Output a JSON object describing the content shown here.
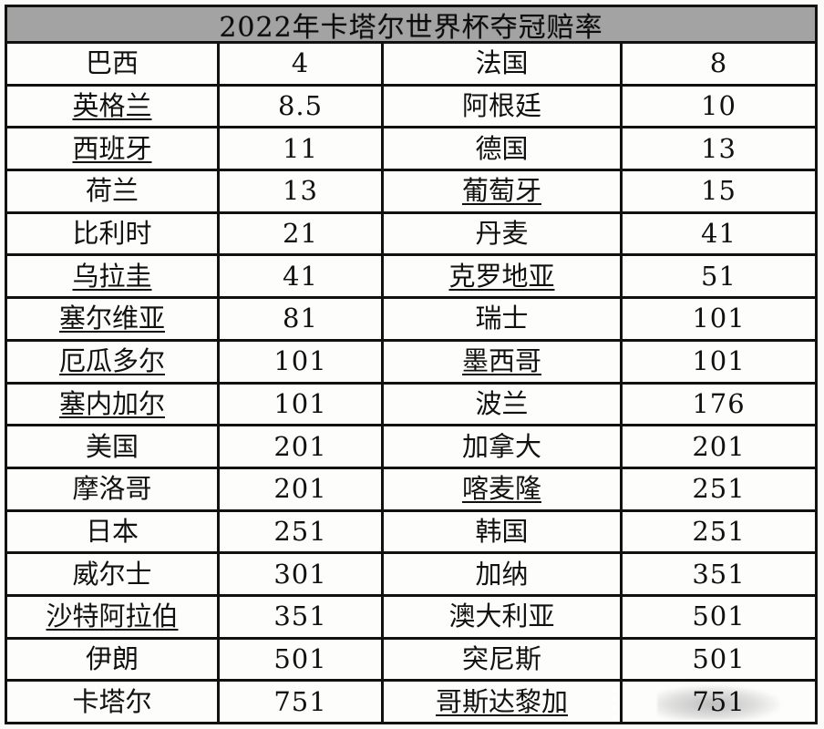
{
  "title": "2022年卡塔尔世界杯夺冠赔率",
  "chart_data": {
    "type": "table",
    "title": "2022年卡塔尔世界杯夺冠赔率",
    "columns": [
      "team",
      "odds",
      "team",
      "odds"
    ],
    "rows": [
      {
        "left_team": "巴西",
        "left_odds": "4",
        "right_team": "法国",
        "right_odds": "8",
        "left_link": false,
        "right_link": false
      },
      {
        "left_team": "英格兰",
        "left_odds": "8.5",
        "right_team": "阿根廷",
        "right_odds": "10",
        "left_link": true,
        "right_link": false
      },
      {
        "left_team": "西班牙",
        "left_odds": "11",
        "right_team": "德国",
        "right_odds": "13",
        "left_link": true,
        "right_link": false
      },
      {
        "left_team": "荷兰",
        "left_odds": "13",
        "right_team": "葡萄牙",
        "right_odds": "15",
        "left_link": false,
        "right_link": true
      },
      {
        "left_team": "比利时",
        "left_odds": "21",
        "right_team": "丹麦",
        "right_odds": "41",
        "left_link": false,
        "right_link": false
      },
      {
        "left_team": "乌拉圭",
        "left_odds": "41",
        "right_team": "克罗地亚",
        "right_odds": "51",
        "left_link": true,
        "right_link": true
      },
      {
        "left_team": "塞尔维亚",
        "left_odds": "81",
        "right_team": "瑞士",
        "right_odds": "101",
        "left_link": true,
        "right_link": false
      },
      {
        "left_team": "厄瓜多尔",
        "left_odds": "101",
        "right_team": "墨西哥",
        "right_odds": "101",
        "left_link": true,
        "right_link": true
      },
      {
        "left_team": "塞内加尔",
        "left_odds": "101",
        "right_team": "波兰",
        "right_odds": "176",
        "left_link": true,
        "right_link": false
      },
      {
        "left_team": "美国",
        "left_odds": "201",
        "right_team": "加拿大",
        "right_odds": "201",
        "left_link": false,
        "right_link": false
      },
      {
        "left_team": "摩洛哥",
        "left_odds": "201",
        "right_team": "喀麦隆",
        "right_odds": "251",
        "left_link": false,
        "right_link": true
      },
      {
        "left_team": "日本",
        "left_odds": "251",
        "right_team": "韩国",
        "right_odds": "251",
        "left_link": false,
        "right_link": false
      },
      {
        "left_team": "威尔士",
        "left_odds": "301",
        "right_team": "加纳",
        "right_odds": "351",
        "left_link": false,
        "right_link": false
      },
      {
        "left_team": "沙特阿拉伯",
        "left_odds": "351",
        "right_team": "澳大利亚",
        "right_odds": "501",
        "left_link": true,
        "right_link": false
      },
      {
        "left_team": "伊朗",
        "left_odds": "501",
        "right_team": "突尼斯",
        "right_odds": "501",
        "left_link": false,
        "right_link": false
      },
      {
        "left_team": "卡塔尔",
        "left_odds": "751",
        "right_team": "哥斯达黎加",
        "right_odds": "751",
        "left_link": false,
        "right_link": true
      }
    ]
  },
  "colors": {
    "title_bg": "#a3a3a3",
    "border": "#111111",
    "cell_bg": "#fdfdfc",
    "text": "#111111"
  }
}
